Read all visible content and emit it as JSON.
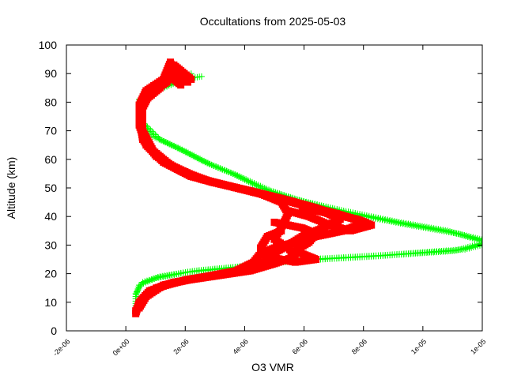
{
  "chart_data": {
    "type": "scatter",
    "title": "Occultations from 2025-05-03",
    "xlabel": "O3 VMR",
    "ylabel": "Altitude (km)",
    "xlim": [
      -2e-06,
      1e-05
    ],
    "ylim": [
      0,
      100
    ],
    "xtick_labels": [
      "-2e-06",
      "0e+00",
      "2e-06",
      "4e-06",
      "6e-06",
      "8e-06",
      "1e-05",
      "1e-05"
    ],
    "ytick_labels": [
      "0",
      "10",
      "20",
      "30",
      "40",
      "50",
      "60",
      "70",
      "80",
      "90",
      "100"
    ],
    "grid": false,
    "series": [
      {
        "color": "#00ff00",
        "marker": "plus",
        "profiles": [
          [
            [
              1.6e-06,
              90
            ],
            [
              1.2e-06,
              87
            ],
            [
              6e-07,
              84
            ],
            [
              1e-07,
              80
            ],
            [
              1e-07,
              74
            ],
            [
              5e-07,
              68
            ],
            [
              1.2e-06,
              64
            ],
            [
              2e-06,
              59
            ],
            [
              2.8e-06,
              55
            ],
            [
              3.6e-06,
              50
            ],
            [
              4.6e-06,
              46
            ],
            [
              6e-06,
              42
            ],
            [
              7.6e-06,
              38
            ],
            [
              9e-06,
              35
            ],
            [
              1.01e-05,
              31
            ],
            [
              9.2e-06,
              28
            ],
            [
              6.8e-06,
              26
            ],
            [
              4.6e-06,
              24.5
            ],
            [
              2.8e-06,
              22
            ],
            [
              1.5e-06,
              20.5
            ],
            [
              6e-07,
              18.5
            ],
            [
              1e-07,
              16
            ],
            [
              0,
              12
            ],
            [
              0,
              8
            ]
          ],
          [
            [
              1.9e-06,
              89
            ],
            [
              1.4e-06,
              88
            ],
            [
              7e-07,
              85
            ],
            [
              1e-07,
              81
            ],
            [
              2e-07,
              73
            ],
            [
              7e-07,
              67
            ],
            [
              1.4e-06,
              63
            ],
            [
              2.2e-06,
              58
            ],
            [
              3e-06,
              54
            ],
            [
              3.9e-06,
              49
            ],
            [
              4.9e-06,
              45
            ],
            [
              6.2e-06,
              41
            ],
            [
              7.9e-06,
              37
            ],
            [
              9.3e-06,
              34
            ],
            [
              1.03e-05,
              31
            ],
            [
              9.5e-06,
              28.5
            ],
            [
              7.2e-06,
              26.5
            ],
            [
              5e-06,
              25
            ],
            [
              3e-06,
              22.5
            ],
            [
              1.7e-06,
              21
            ],
            [
              7e-07,
              19
            ],
            [
              2e-07,
              17
            ],
            [
              0,
              13
            ]
          ]
        ]
      },
      {
        "color": "#ff0000",
        "marker": "square",
        "profiles": [
          [
            [
              1.5e-06,
              87
            ],
            [
              1.1e-06,
              90
            ],
            [
              1e-06,
              94
            ],
            [
              8e-07,
              88
            ],
            [
              3e-07,
              84
            ],
            [
              1e-07,
              79
            ],
            [
              1e-07,
              72
            ],
            [
              3e-07,
              65
            ],
            [
              8e-07,
              59
            ],
            [
              1.6e-06,
              54
            ],
            [
              2.6e-06,
              51
            ],
            [
              3.6e-06,
              48
            ],
            [
              4.2e-06,
              45
            ],
            [
              4.4e-06,
              41
            ],
            [
              4.2e-06,
              36
            ],
            [
              4e-06,
              32
            ],
            [
              4.4e-06,
              29
            ],
            [
              4.6e-06,
              26
            ],
            [
              4e-06,
              23.5
            ],
            [
              3.3e-06,
              21
            ],
            [
              2.2e-06,
              19
            ],
            [
              1.1e-06,
              17
            ],
            [
              4e-07,
              14
            ],
            [
              1e-07,
              10
            ],
            [
              0,
              6
            ]
          ],
          [
            [
              1.6e-06,
              88
            ],
            [
              1.3e-06,
              91
            ],
            [
              1.1e-06,
              93
            ],
            [
              9e-07,
              87
            ],
            [
              4e-07,
              83
            ],
            [
              2e-07,
              78
            ],
            [
              2e-07,
              70
            ],
            [
              5e-07,
              63
            ],
            [
              1e-06,
              58
            ],
            [
              1.9e-06,
              53
            ],
            [
              2.9e-06,
              50
            ],
            [
              3.9e-06,
              47
            ],
            [
              4.8e-06,
              44
            ],
            [
              5.8e-06,
              41
            ],
            [
              6.6e-06,
              38
            ],
            [
              6e-06,
              35
            ],
            [
              5.2e-06,
              33
            ],
            [
              4.6e-06,
              31
            ],
            [
              4e-06,
              29
            ],
            [
              3.6e-06,
              27
            ],
            [
              3.4e-06,
              24
            ],
            [
              2.9e-06,
              21
            ],
            [
              1.8e-06,
              18.5
            ],
            [
              8e-07,
              16
            ],
            [
              3e-07,
              12
            ],
            [
              1e-07,
              8
            ]
          ],
          [
            [
              1.3e-06,
              86
            ],
            [
              9e-07,
              90
            ],
            [
              7e-07,
              85
            ],
            [
              2e-07,
              80
            ],
            [
              1e-07,
              75
            ],
            [
              2e-07,
              67
            ],
            [
              6e-07,
              61
            ],
            [
              1.3e-06,
              56
            ],
            [
              2.2e-06,
              52
            ],
            [
              3.3e-06,
              49
            ],
            [
              4.3e-06,
              46
            ],
            [
              5.2e-06,
              43
            ],
            [
              5.9e-06,
              39
            ],
            [
              5.4e-06,
              36
            ],
            [
              4.8e-06,
              33
            ],
            [
              4.4e-06,
              30
            ],
            [
              4.1e-06,
              28
            ],
            [
              3.8e-06,
              25
            ],
            [
              3.5e-06,
              22
            ],
            [
              2.6e-06,
              20
            ],
            [
              1.5e-06,
              18
            ],
            [
              6e-07,
              15
            ],
            [
              2e-07,
              11
            ],
            [
              0,
              7
            ]
          ],
          [
            [
              4e-06,
              38
            ],
            [
              4.8e-06,
              36
            ],
            [
              5.2e-06,
              34
            ],
            [
              5e-06,
              31
            ],
            [
              4.6e-06,
              28
            ],
            [
              5e-06,
              26
            ],
            [
              5.2e-06,
              25
            ],
            [
              4.6e-06,
              24
            ],
            [
              3.8e-06,
              26
            ],
            [
              3.6e-06,
              29
            ],
            [
              3.8e-06,
              33
            ],
            [
              4.2e-06,
              35
            ]
          ],
          [
            [
              4.4e-06,
              42
            ],
            [
              5e-06,
              40
            ],
            [
              5.6e-06,
              37
            ],
            [
              6.2e-06,
              35
            ],
            [
              6.8e-06,
              37
            ],
            [
              6.4e-06,
              39
            ],
            [
              5.6e-06,
              41
            ],
            [
              4.8e-06,
              43
            ]
          ]
        ]
      }
    ]
  }
}
